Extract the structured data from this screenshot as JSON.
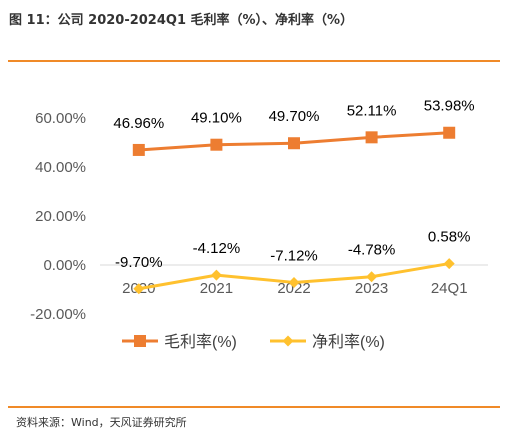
{
  "figure": {
    "title": "图 11：公司 2020-2024Q1 毛利率（%）、净利率（%）",
    "source": "资料来源：Wind，天风证券研究所",
    "accent_color": "#F08A28"
  },
  "chart_data": {
    "type": "line",
    "categories": [
      "2020",
      "2021",
      "2022",
      "2023",
      "24Q1"
    ],
    "y_tick_labels": [
      "60.00%",
      "40.00%",
      "20.00%",
      "0.00%",
      "-20.00%"
    ],
    "ylim": [
      -20,
      60
    ],
    "grid": false,
    "legend_position": "bottom",
    "series": [
      {
        "name": "毛利率(%)",
        "values": [
          46.96,
          49.1,
          49.7,
          52.11,
          53.98
        ],
        "labels": [
          "46.96%",
          "49.10%",
          "49.70%",
          "52.11%",
          "53.98%"
        ],
        "color": "#ED7D31",
        "marker": "square"
      },
      {
        "name": "净利率(%)",
        "values": [
          -9.7,
          -4.12,
          -7.12,
          -4.78,
          0.58
        ],
        "labels": [
          "-9.70%",
          "-4.12%",
          "-7.12%",
          "-4.78%",
          "0.58%"
        ],
        "color": "#FFC12E",
        "marker": "diamond"
      }
    ]
  }
}
